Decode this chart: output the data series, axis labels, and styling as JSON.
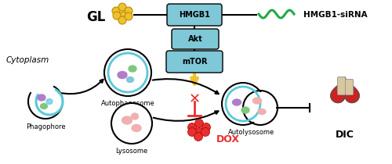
{
  "bg_color": "#ffffff",
  "cytoplasm_label": "Cytoplasm",
  "phagophore_label": "Phagophore",
  "autophagosome_label": "Autophagosome",
  "lysosome_label": "Lysosome",
  "autolysosome_label": "Autolysosome",
  "gl_label": "GL",
  "hmgb1_label": "HMGB1",
  "hmgb1sirna_label": "HMGB1-siRNA",
  "akt_label": "Akt",
  "mtor_label": "mTOR",
  "dox_label": "DOX",
  "dic_label": "DIC",
  "cyan_color": "#5bc8d9",
  "yellow_color": "#f0c030",
  "red_color": "#e63030",
  "green_color": "#22aa44",
  "box_color": "#7ec8d8",
  "heart_red": "#cc2222",
  "heart_light": "#f0a0a0",
  "purple_color": "#b07ec8",
  "green_blob": "#7ec87e",
  "pink_color": "#f0b0b0"
}
